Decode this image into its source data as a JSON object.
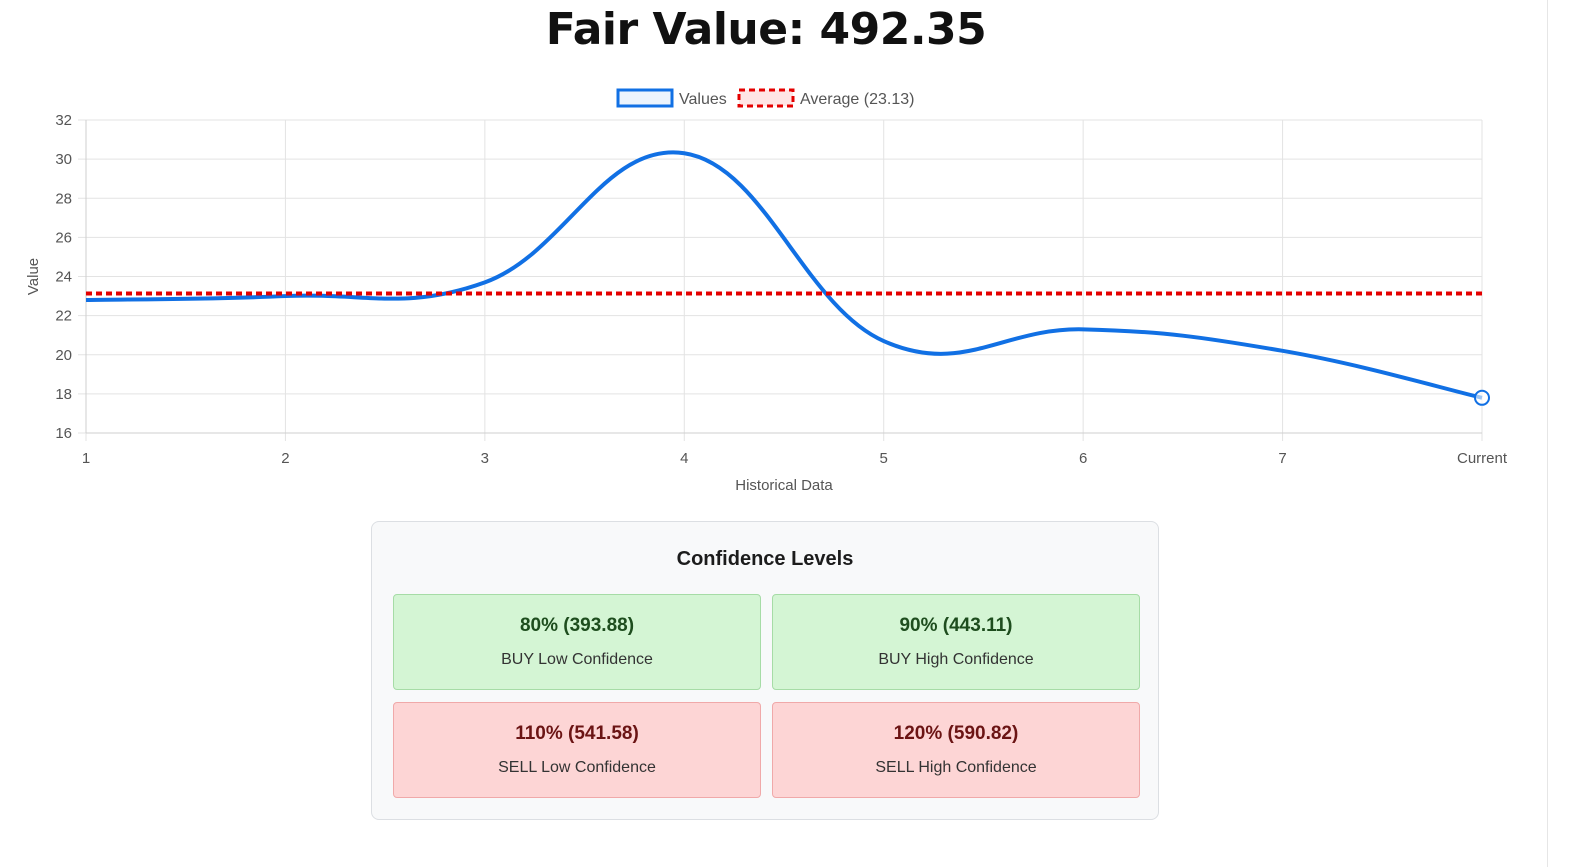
{
  "page": {
    "title": "Fair Value: 492.35"
  },
  "chart_data": {
    "type": "line",
    "title": "",
    "xlabel": "Historical Data",
    "ylabel": "Value",
    "categories": [
      "1",
      "2",
      "3",
      "4",
      "5",
      "6",
      "7",
      "Current"
    ],
    "ylim": [
      16,
      32
    ],
    "yticks": [
      16,
      18,
      20,
      22,
      24,
      26,
      28,
      30,
      32
    ],
    "grid": true,
    "legend_position": "top-center",
    "series": [
      {
        "name": "Values",
        "style": "solid",
        "color": "#1170e4",
        "values": [
          22.8,
          23.0,
          23.7,
          30.3,
          20.7,
          21.3,
          20.2,
          17.8
        ],
        "marker_on_last": true
      },
      {
        "name": "Average (23.13)",
        "style": "dotted",
        "color": "#e40000",
        "values": [
          23.13,
          23.13,
          23.13,
          23.13,
          23.13,
          23.13,
          23.13,
          23.13
        ]
      }
    ]
  },
  "confidence": {
    "title": "Confidence Levels",
    "buy_low": {
      "pct": "80% (393.88)",
      "label": "BUY Low Confidence"
    },
    "buy_high": {
      "pct": "90% (443.11)",
      "label": "BUY High Confidence"
    },
    "sell_low": {
      "pct": "110% (541.58)",
      "label": "SELL Low Confidence"
    },
    "sell_high": {
      "pct": "120% (590.82)",
      "label": "SELL High Confidence"
    }
  },
  "colors": {
    "buy_bg": "#d4f5d4",
    "sell_bg": "#fdd5d5",
    "values_line": "#1170e4",
    "average_line": "#e40000"
  }
}
